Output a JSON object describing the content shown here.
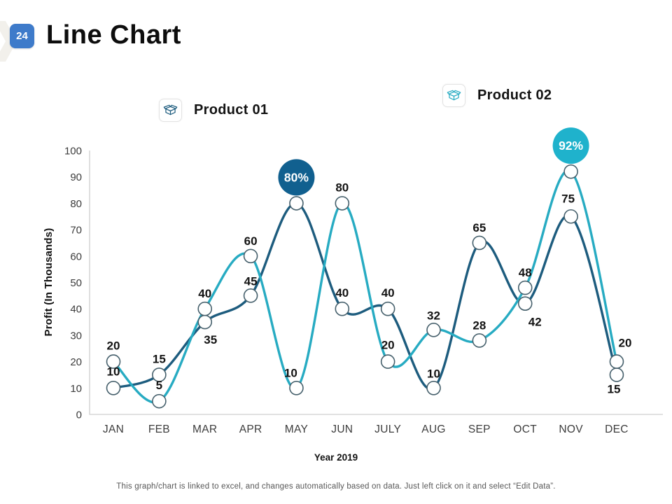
{
  "slide": {
    "badge": "24",
    "title": "Line Chart",
    "footer": "This graph/chart is linked to excel, and changes automatically based on data. Just left click on it and select “Edit Data”."
  },
  "legend": {
    "items": [
      {
        "label": "Product 01",
        "icon": "open-box-icon",
        "color": "#1d5c7e"
      },
      {
        "label": "Product 02",
        "icon": "open-box-icon",
        "color": "#27abc2"
      }
    ]
  },
  "chart_data": {
    "type": "line",
    "title": "Line Chart",
    "x": [
      "JAN",
      "FEB",
      "MAR",
      "APR",
      "MAY",
      "JUN",
      "JULY",
      "AUG",
      "SEP",
      "OCT",
      "NOV",
      "DEC"
    ],
    "xlabel": "Year 2019",
    "ylabel": "Profit (In Thousands)",
    "ylim": [
      0,
      100
    ],
    "ytick_step": 10,
    "grid": false,
    "smooth": true,
    "legend_position": "top",
    "axis_color": "#d7d7d7",
    "marker": {
      "fill": "#ffffff",
      "stroke": "#46606c",
      "radius": 9.5
    },
    "series": [
      {
        "name": "Product 01",
        "color": "#1d5c7e",
        "values": [
          10,
          15,
          35,
          45,
          80,
          40,
          40,
          10,
          65,
          42,
          75,
          15
        ]
      },
      {
        "name": "Product 02",
        "color": "#27abc2",
        "values": [
          20,
          5,
          40,
          60,
          10,
          80,
          20,
          32,
          28,
          48,
          92,
          20
        ]
      }
    ],
    "annotations": [
      {
        "series": "Product 01",
        "month": "MAY",
        "value": 80,
        "label": "80%",
        "color": "#11608f"
      },
      {
        "series": "Product 02",
        "month": "NOV",
        "value": 92,
        "label": "92%",
        "color": "#1fb2cc"
      }
    ],
    "label_offsets": {
      "Product 01": [
        [
          0,
          -18
        ],
        [
          0,
          -17
        ],
        [
          8,
          31
        ],
        [
          0,
          -15
        ],
        null,
        [
          0,
          -17
        ],
        [
          0,
          -17
        ],
        [
          0,
          -15
        ],
        [
          0,
          -16
        ],
        [
          14,
          32
        ],
        [
          -4,
          -20
        ],
        [
          -4,
          26
        ]
      ],
      "Product 02": [
        [
          0,
          -17
        ],
        [
          0,
          -17
        ],
        [
          0,
          -16
        ],
        [
          0,
          -16
        ],
        [
          -8,
          -16
        ],
        [
          0,
          -17
        ],
        [
          0,
          -18
        ],
        [
          0,
          -15
        ],
        [
          0,
          -16
        ],
        [
          0,
          -16
        ],
        null,
        [
          12,
          -21
        ]
      ]
    }
  }
}
